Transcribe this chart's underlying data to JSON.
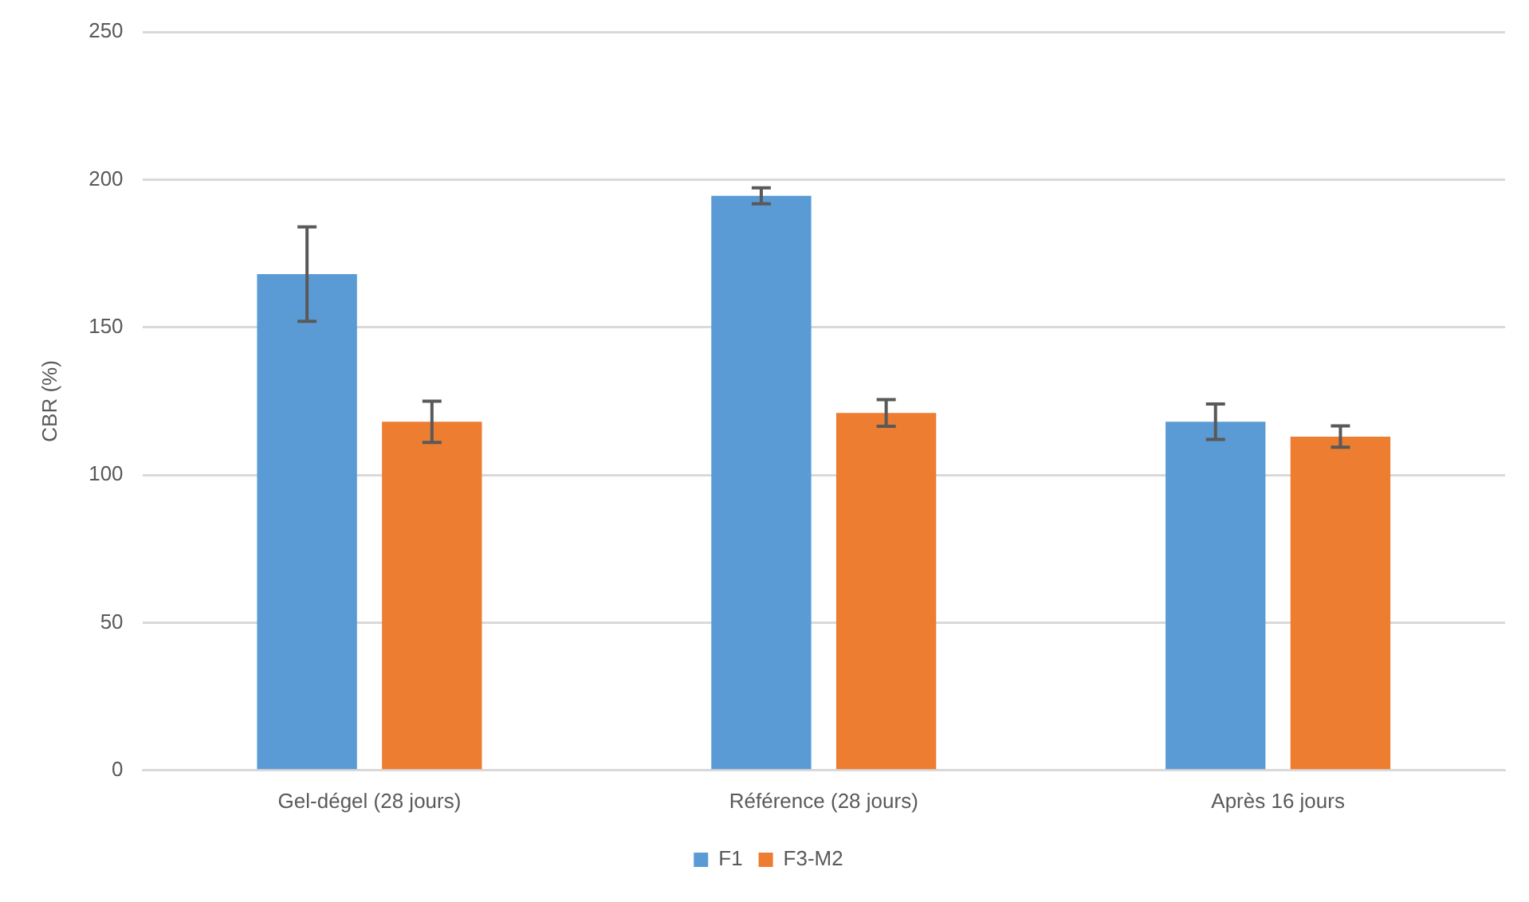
{
  "chart_data": {
    "type": "bar",
    "ylabel": "CBR (%)",
    "categories": [
      "Gel-dégel (28 jours)",
      "Référence (28 jours)",
      "Après 16 jours"
    ],
    "series": [
      {
        "name": "F1",
        "color": "#5b9bd5",
        "values": [
          168,
          194.5,
          118
        ],
        "errors": [
          16,
          2.7,
          6
        ]
      },
      {
        "name": "F3-M2",
        "color": "#ed7d31",
        "values": [
          118,
          121,
          113
        ],
        "errors": [
          7,
          4.5,
          3.6
        ]
      }
    ],
    "ylim": [
      0,
      250
    ],
    "yticks": [
      0,
      50,
      100,
      150,
      200,
      250
    ],
    "grid": "y",
    "legend": "bottom"
  }
}
